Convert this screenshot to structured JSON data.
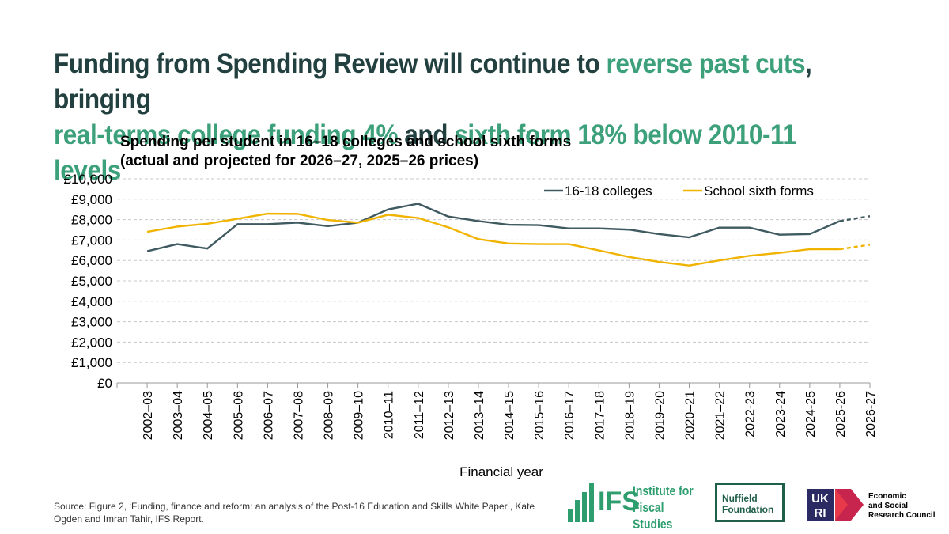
{
  "headline": {
    "part1": "Funding from Spending Review will continue to ",
    "part2": "reverse past cuts",
    "part3": ", bringing",
    "part4": "real-terms college funding 4%",
    "part5": " and ",
    "part6": "sixth form 18% below 2010-11 levels"
  },
  "colors": {
    "headline_dark": "#22403f",
    "headline_accent": "#3ca07a",
    "colleges": "#3f5a60",
    "sixth_forms": "#f0b400",
    "grid": "#c8c8c8"
  },
  "chart_data": {
    "type": "line",
    "title": "Spending per student in 16–18 colleges and school sixth forms",
    "subtitle": "(actual and projected for 2026–27, 2025–26 prices)",
    "xlabel": "Financial year",
    "ylabel": "",
    "ylim": [
      0,
      10000
    ],
    "yticks": [
      0,
      1000,
      2000,
      3000,
      4000,
      5000,
      6000,
      7000,
      8000,
      9000,
      10000
    ],
    "ytick_labels": [
      "£0",
      "£1,000",
      "£2,000",
      "£3,000",
      "£4,000",
      "£5,000",
      "£6,000",
      "£7,000",
      "£8,000",
      "£9,000",
      "£10,000"
    ],
    "grid": true,
    "legend_position": "top-right",
    "categories": [
      "2002–03",
      "2003–04",
      "2004–05",
      "2005–06",
      "2006–07",
      "2007–08",
      "2008–09",
      "2009–10",
      "2010–11",
      "2011–12",
      "2012–13",
      "2013–14",
      "2014–15",
      "2015–16",
      "2016–17",
      "2017–18",
      "2018–19",
      "2019–20",
      "2020–21",
      "2021–22",
      "2022-23",
      "2023-24",
      "2024-25",
      "2025-26",
      "2026-27"
    ],
    "projected_from_index": 23,
    "series": [
      {
        "name": "16-18 colleges",
        "values": [
          6450,
          6800,
          6580,
          7780,
          7780,
          7850,
          7680,
          7850,
          8500,
          8780,
          8150,
          7930,
          7750,
          7730,
          7570,
          7570,
          7510,
          7290,
          7130,
          7610,
          7610,
          7260,
          7290,
          7930,
          8170
        ]
      },
      {
        "name": "School sixth forms",
        "values": [
          7400,
          7660,
          7800,
          8040,
          8290,
          8280,
          7980,
          7850,
          8240,
          8080,
          7620,
          7040,
          6830,
          6800,
          6800,
          6490,
          6170,
          5930,
          5750,
          6000,
          6230,
          6370,
          6550,
          6550,
          6770
        ]
      }
    ]
  },
  "source": "Source: Figure 2, ‘Funding, finance and reform: an analysis of the Post-16 Education and Skills White Paper’, Kate Ogden and Imran Tahir, IFS Report.",
  "logos": {
    "ifs_abbr": "IFS",
    "ifs_line1": "Institute for",
    "ifs_line2": "Fiscal Studies",
    "nuffield_line1": "Nuffield",
    "nuffield_line2": "Foundation",
    "ukri_line1": "UK",
    "ukri_line2": "RI",
    "esrc_line1": "Economic",
    "esrc_line2": "and Social",
    "esrc_line3": "Research Council"
  }
}
